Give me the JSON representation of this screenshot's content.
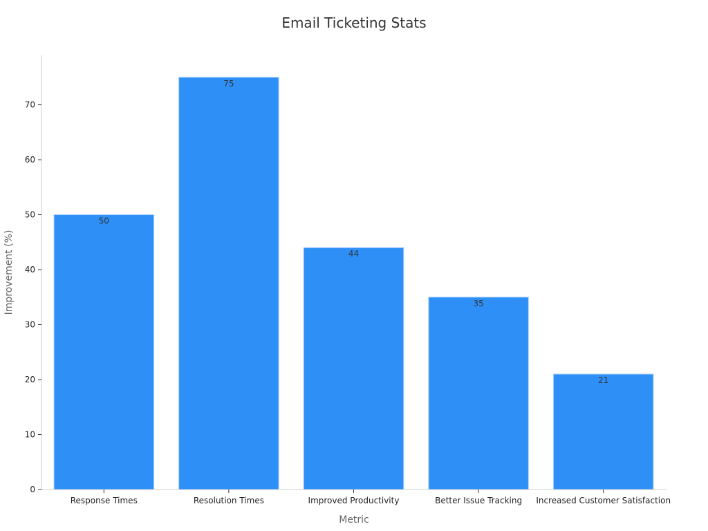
{
  "chart_data": {
    "type": "bar",
    "title": "Email Ticketing Stats",
    "xlabel": "Metric",
    "ylabel": "Improvement (%)",
    "categories": [
      "Response Times",
      "Resolution Times",
      "Improved Productivity",
      "Better Issue Tracking",
      "Increased Customer Satisfaction"
    ],
    "values": [
      50,
      75,
      44,
      35,
      21
    ],
    "data_labels": [
      "50",
      "75",
      "44",
      "35",
      "21"
    ],
    "ylim": [
      0,
      79
    ],
    "yticks": [
      0,
      10,
      20,
      30,
      40,
      50,
      60,
      70
    ],
    "ytick_labels": [
      "0",
      "10",
      "20",
      "30",
      "40",
      "50",
      "60",
      "70"
    ],
    "grid": false,
    "legend": "none",
    "bar_color": "#2e90f7",
    "bar_edge_color": "#a8cdfb"
  }
}
